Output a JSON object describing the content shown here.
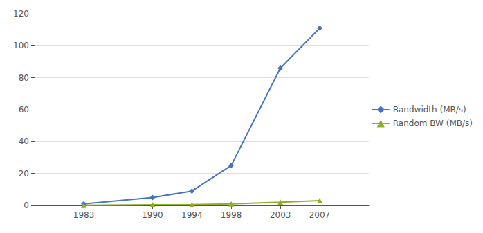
{
  "chart_data": {
    "type": "line",
    "x": [
      1983,
      1990,
      1994,
      1998,
      2003,
      2007
    ],
    "series": [
      {
        "name": "Bandwidth (MB/s)",
        "color": "#4472C4",
        "marker": "diamond",
        "values": [
          1,
          5,
          9,
          25,
          86,
          111
        ]
      },
      {
        "name": "Random BW (MB/s)",
        "color": "#8FAF2A",
        "marker": "triangle",
        "values": [
          0.1,
          0.4,
          0.5,
          1,
          2,
          3
        ]
      }
    ],
    "xlim": [
      1978,
      2012
    ],
    "xticks": [
      1983,
      1990,
      1994,
      1998,
      2003,
      2007
    ],
    "ylim": [
      0,
      120
    ],
    "yticks": [
      0,
      20,
      40,
      60,
      80,
      100,
      120
    ],
    "grid": true,
    "legend": "right"
  }
}
